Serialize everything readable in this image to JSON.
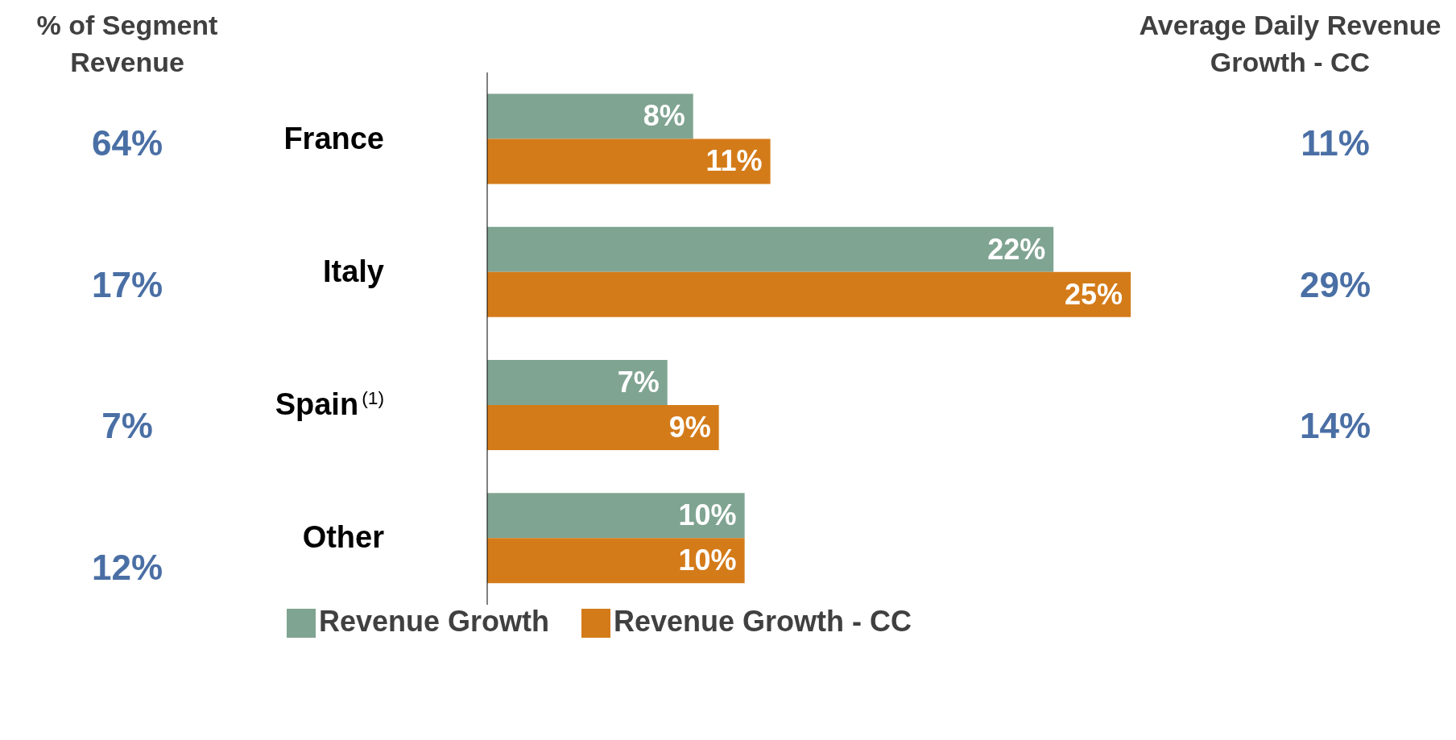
{
  "chart_data": {
    "type": "bar",
    "orientation": "horizontal",
    "categories": [
      "France",
      "Italy",
      "Spain$^{(1)}$",
      "Other"
    ],
    "series": [
      {
        "name": "Revenue Growth",
        "color": "#80a492",
        "values": [
          8,
          22,
          7,
          10
        ],
        "value_labels": [
          "8%",
          "22%",
          "7%",
          "10%"
        ]
      },
      {
        "name": "Revenue Growth - CC",
        "color": "#d47b19",
        "values": [
          11,
          25,
          9,
          10
        ],
        "value_labels": [
          "11%",
          "25%",
          "9%",
          "10%"
        ]
      }
    ],
    "tick_labels": "y",
    "legend": "bottom",
    "annotations": [
      "% of Segment Revenue",
      "64%",
      "17%",
      "7%",
      "12%",
      "Average Daily Revenue Growth - CC",
      "11%",
      "29%",
      "14%"
    ]
  }
}
